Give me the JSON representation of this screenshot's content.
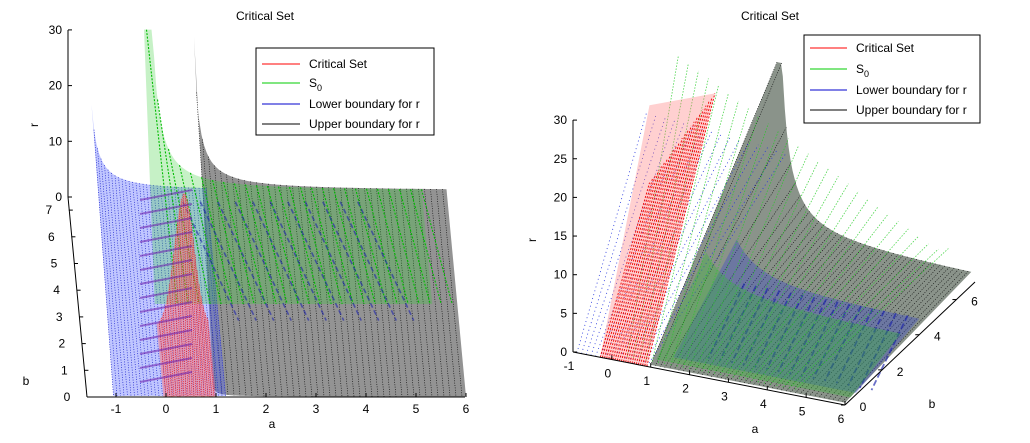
{
  "chart_data": [
    {
      "type": "surface3d",
      "title": "Critical Set",
      "xlabel": "a",
      "ylabel": "b",
      "zlabel": "r",
      "x_ticks": [
        "-1",
        "0",
        "1",
        "2",
        "3",
        "4",
        "5",
        "6"
      ],
      "y_ticks": [
        "0",
        "1",
        "2",
        "3",
        "4",
        "5",
        "6",
        "7"
      ],
      "z_ticks": [
        "0",
        "10",
        "20",
        "30"
      ],
      "xlim": [
        -1.2,
        6
      ],
      "ylim": [
        0,
        7.5
      ],
      "zlim": [
        0,
        30
      ],
      "legend": {
        "position": "top-right",
        "entries": [
          {
            "label": "Critical Set",
            "color": "#ff0000"
          },
          {
            "label": "S",
            "sub": "0",
            "color": "#00cc00"
          },
          {
            "label": "Lower boundary for r",
            "color": "#0000cc"
          },
          {
            "label": "Upper boundary for r",
            "color": "#000000"
          }
        ]
      }
    },
    {
      "type": "surface3d",
      "title": "Critical Set",
      "xlabel": "a",
      "ylabel": "b",
      "zlabel": "r",
      "x_ticks": [
        "-1",
        "0",
        "1",
        "2",
        "3",
        "4",
        "5",
        "6"
      ],
      "y_ticks": [
        "0",
        "2",
        "4",
        "6"
      ],
      "z_ticks": [
        "0",
        "5",
        "10",
        "15",
        "20",
        "25",
        "30"
      ],
      "xlim": [
        -1,
        6
      ],
      "ylim": [
        0,
        7
      ],
      "zlim": [
        0,
        30
      ],
      "legend": {
        "position": "top-right",
        "entries": [
          {
            "label": "Critical Set",
            "color": "#ff0000"
          },
          {
            "label": "S",
            "sub": "0",
            "color": "#00cc00"
          },
          {
            "label": "Lower boundary for r",
            "color": "#0000cc"
          },
          {
            "label": "Upper boundary for r",
            "color": "#000000"
          }
        ]
      }
    }
  ]
}
